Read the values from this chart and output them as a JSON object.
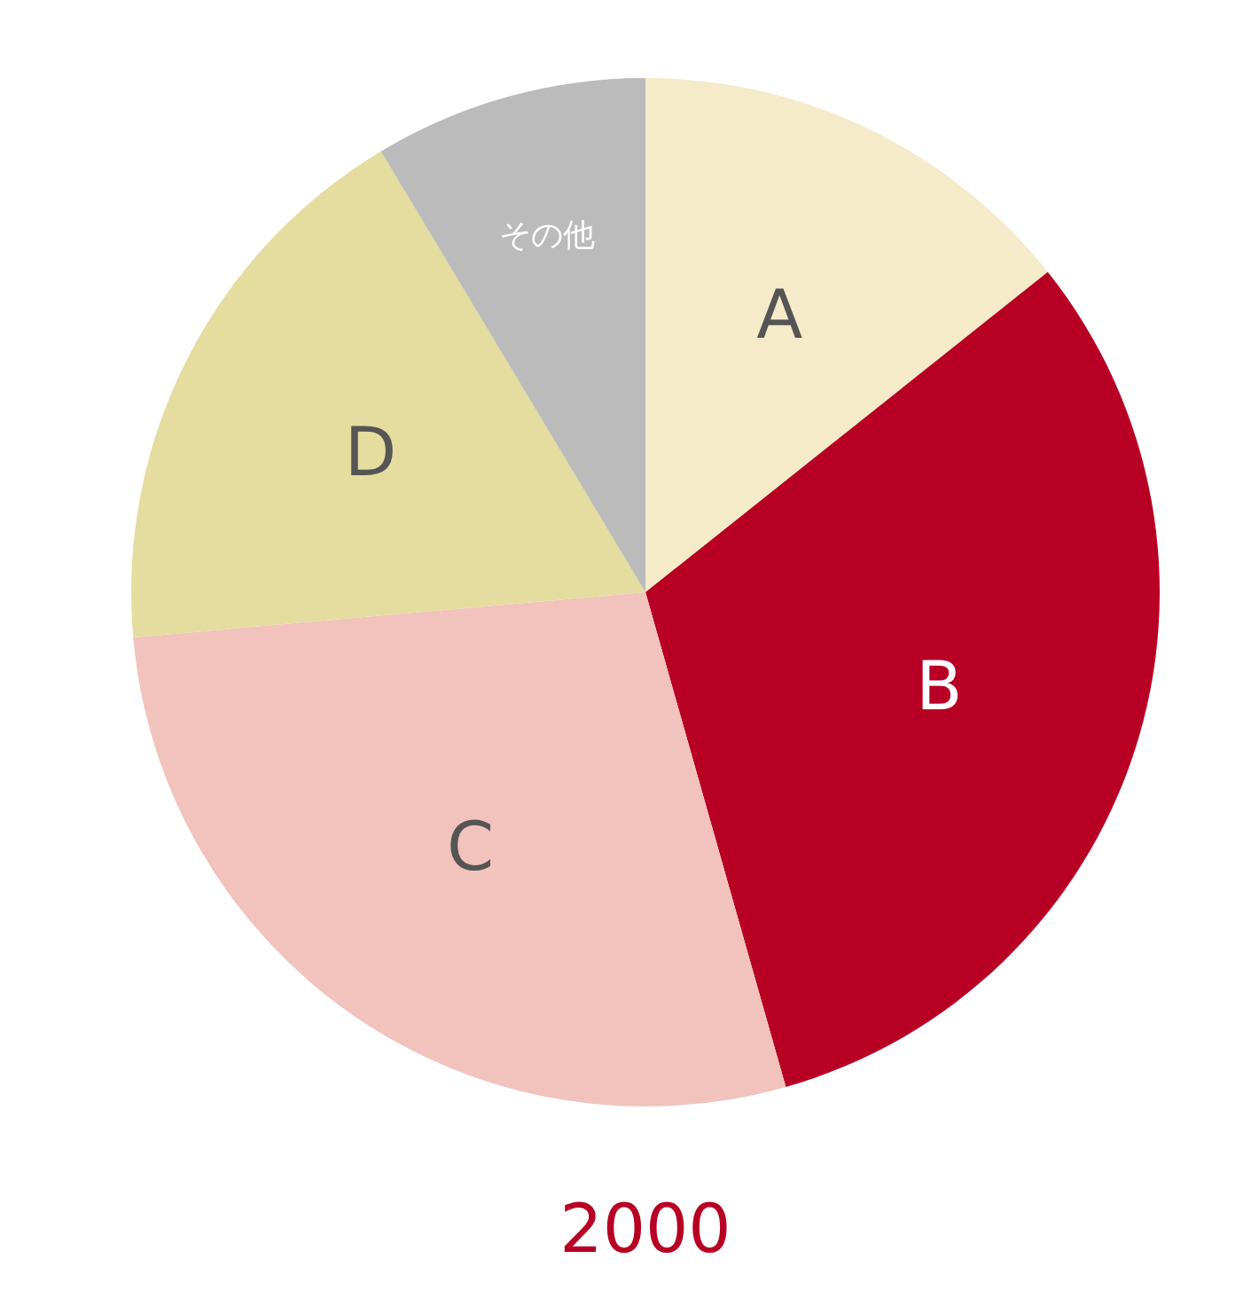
{
  "chart_data": {
    "type": "pie",
    "title": "2000",
    "categories": [
      "A",
      "B",
      "C",
      "D",
      "その他"
    ],
    "values": [
      14.3,
      31.3,
      28.0,
      17.8,
      8.6
    ],
    "colors": [
      "#f5ebca",
      "#b80024",
      "#f2c2bd",
      "#e5dca0",
      "#babbba"
    ]
  }
}
